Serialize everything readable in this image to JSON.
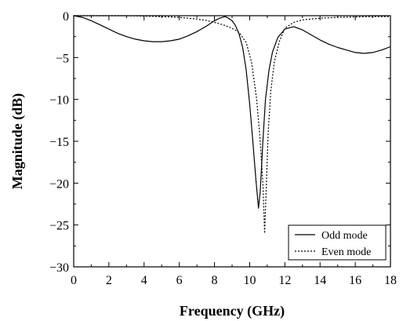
{
  "chart_data": {
    "type": "line",
    "title": "",
    "xlabel": "Frequency (GHz)",
    "ylabel": "Magnitude (dB)",
    "xlim": [
      0,
      18
    ],
    "ylim": [
      -30,
      0
    ],
    "xticks": [
      0,
      2,
      4,
      6,
      8,
      10,
      12,
      14,
      16,
      18
    ],
    "yticks": [
      0,
      -5,
      -10,
      -15,
      -20,
      -25,
      -30
    ],
    "grid": false,
    "legend_position": "bottom-right",
    "series": [
      {
        "name": "Odd mode",
        "style": "solid",
        "color": "#000000",
        "x": [
          0,
          0.5,
          1,
          1.5,
          2,
          2.5,
          3,
          3.5,
          4,
          4.5,
          5,
          5.5,
          6,
          6.5,
          7,
          7.5,
          8,
          8.3,
          8.6,
          8.8,
          9.0,
          9.2,
          9.4,
          9.6,
          9.8,
          10.0,
          10.2,
          10.35,
          10.5,
          10.6,
          10.75,
          10.9,
          11.1,
          11.3,
          11.6,
          12.0,
          12.5,
          13,
          13.5,
          14,
          14.5,
          15,
          15.5,
          16,
          16.5,
          17,
          17.5,
          18
        ],
        "y": [
          0,
          -0.2,
          -0.6,
          -1.1,
          -1.6,
          -2.1,
          -2.5,
          -2.8,
          -3.0,
          -3.1,
          -3.1,
          -3.0,
          -2.8,
          -2.4,
          -1.9,
          -1.3,
          -0.6,
          -0.3,
          -0.1,
          -0.3,
          -0.6,
          -1.2,
          -2.2,
          -3.8,
          -6.5,
          -10.5,
          -15.5,
          -19.5,
          -23.0,
          -21.0,
          -15.0,
          -10.0,
          -6.5,
          -4.3,
          -2.6,
          -1.6,
          -1.3,
          -1.7,
          -2.3,
          -2.9,
          -3.4,
          -3.8,
          -4.1,
          -4.4,
          -4.5,
          -4.4,
          -4.1,
          -3.7
        ]
      },
      {
        "name": "Even mode",
        "style": "dotted",
        "color": "#000000",
        "x": [
          0,
          1,
          2,
          3,
          4,
          5,
          5.5,
          6,
          6.5,
          7,
          7.5,
          8,
          8.5,
          9,
          9.4,
          9.8,
          10.1,
          10.4,
          10.6,
          10.75,
          10.85,
          10.95,
          11.05,
          11.2,
          11.4,
          11.7,
          12,
          12.5,
          13,
          14,
          15,
          16,
          17,
          18
        ],
        "y": [
          0,
          0,
          0,
          0,
          -0.05,
          -0.1,
          -0.15,
          -0.2,
          -0.3,
          -0.4,
          -0.55,
          -0.8,
          -1.1,
          -1.5,
          -2.0,
          -3.2,
          -5.5,
          -10.0,
          -15.0,
          -20.0,
          -26.0,
          -20.0,
          -14.0,
          -9.0,
          -5.5,
          -3.0,
          -1.5,
          -0.8,
          -0.5,
          -0.3,
          -0.2,
          -0.15,
          -0.1,
          -0.1
        ]
      }
    ]
  }
}
